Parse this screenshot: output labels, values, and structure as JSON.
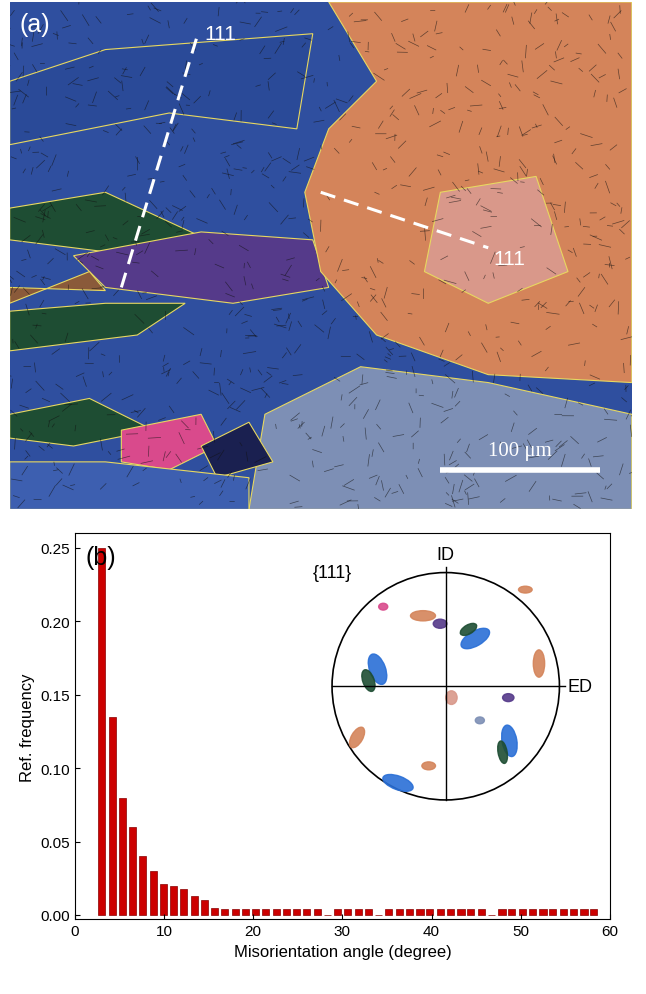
{
  "map": {
    "label": "(a)",
    "annotations": [
      "111",
      "111"
    ],
    "scale_bar": {
      "value": 100,
      "label": "100 μm"
    }
  },
  "chart_data": {
    "type": "bar",
    "panel_label": "(b)",
    "x_label": "Misorientation angle (degree)",
    "y_label": "Ref. frequency",
    "x": [
      3.0,
      4.2,
      5.3,
      6.5,
      7.6,
      8.8,
      9.9,
      11.1,
      12.2,
      13.4,
      14.5,
      15.7,
      16.8,
      18.0,
      19.1,
      20.3,
      21.4,
      22.6,
      23.7,
      24.9,
      26.0,
      27.2,
      28.3,
      29.5,
      30.6,
      31.8,
      32.9,
      34.1,
      35.2,
      36.4,
      37.5,
      38.7,
      39.8,
      41.0,
      42.1,
      43.3,
      44.4,
      45.6,
      46.7,
      47.9,
      49.0,
      50.2,
      51.3,
      52.5,
      53.6,
      54.8,
      55.9,
      57.1,
      58.2
    ],
    "values": [
      0.25,
      0.135,
      0.08,
      0.06,
      0.04,
      0.03,
      0.021,
      0.02,
      0.018,
      0.013,
      0.01,
      0.005,
      0.004,
      0.004,
      0.004,
      0.004,
      0.004,
      0.004,
      0.004,
      0.004,
      0.004,
      0.004,
      0,
      0.004,
      0.004,
      0.004,
      0.004,
      0,
      0.004,
      0.004,
      0.004,
      0.004,
      0.004,
      0.004,
      0.004,
      0.004,
      0.004,
      0.004,
      0,
      0.004,
      0.004,
      0.004,
      0.004,
      0.004,
      0.004,
      0.004,
      0.004,
      0.004,
      0.004
    ],
    "color": "#cc0000",
    "xlim": [
      0,
      60
    ],
    "xticks": [
      0,
      10,
      20,
      30,
      40,
      50,
      60
    ],
    "ylim": [
      -0.003,
      0.26
    ],
    "yticks": [
      {
        "value": 0,
        "label": "0.00"
      },
      {
        "value": 0.05,
        "label": "0.05"
      },
      {
        "value": 0.1,
        "label": "0.10"
      },
      {
        "value": 0.15,
        "label": "0.15"
      },
      {
        "value": 0.2,
        "label": "0.20"
      },
      {
        "value": 0.25,
        "label": "0.25"
      }
    ],
    "inset": {
      "title": "{111}",
      "axis_labels": [
        "ID",
        "ED"
      ]
    }
  }
}
